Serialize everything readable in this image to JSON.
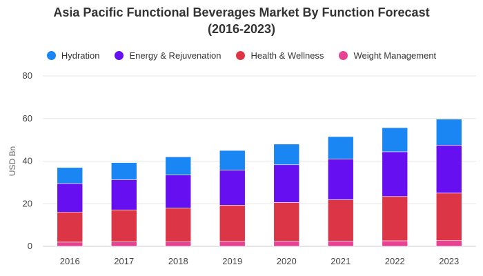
{
  "chart_data": {
    "type": "bar",
    "stacked": true,
    "title_line1": "Asia Pacific Functional Beverages Market By Function Forecast",
    "title_line2": "(2016-2023)",
    "xlabel": "",
    "ylabel": "USD Bn",
    "ylim": [
      0,
      80
    ],
    "yticks": [
      0,
      20,
      40,
      60,
      80
    ],
    "grid": true,
    "legend_position": "top",
    "categories": [
      "2016",
      "2017",
      "2018",
      "2019",
      "2020",
      "2021",
      "2022",
      "2023"
    ],
    "series": [
      {
        "name": "Weight Management",
        "color": "#e84393",
        "values": [
          2,
          2.1,
          2.2,
          2.3,
          2.4,
          2.5,
          2.6,
          2.7
        ]
      },
      {
        "name": "Health & Wellness",
        "color": "#dc3545",
        "values": [
          14,
          15,
          15.8,
          17,
          18.2,
          19.4,
          20.8,
          22.3
        ]
      },
      {
        "name": "Energy & Rejuvenation",
        "color": "#6610f2",
        "values": [
          13.5,
          14.2,
          15.5,
          16.5,
          17.7,
          19.1,
          21,
          22.5
        ]
      },
      {
        "name": "Hydration",
        "color": "#1a86f4",
        "values": [
          7.5,
          8,
          8.5,
          9.2,
          9.7,
          10.5,
          11.3,
          12.2
        ]
      }
    ],
    "legend_order": [
      "Hydration",
      "Energy & Rejuvenation",
      "Health & Wellness",
      "Weight Management"
    ]
  }
}
